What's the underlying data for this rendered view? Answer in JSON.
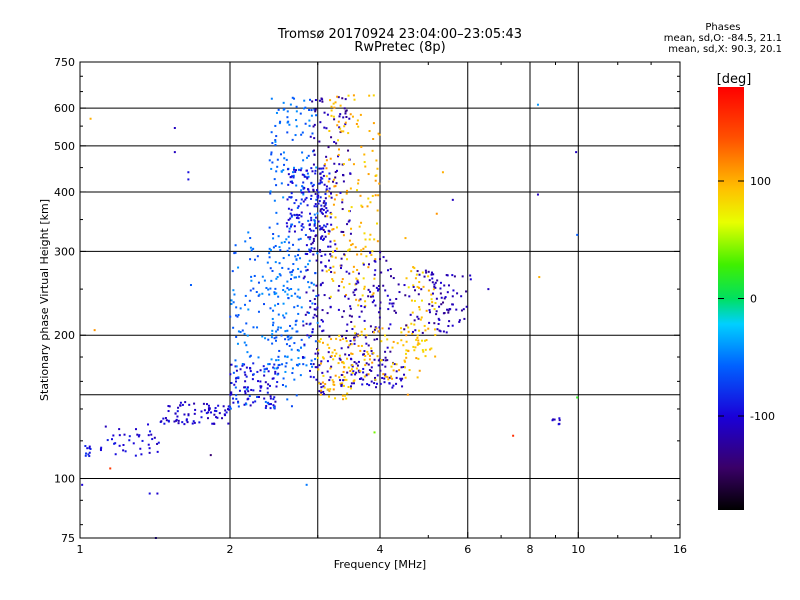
{
  "title": "Tromsø 20170924 23:04:00–23:05:43",
  "subtitle": "RwPretec (8p)",
  "phase_box": {
    "header": "Phases",
    "line1": "mean, sd,O: -84.5, 21.1",
    "line2": "mean, sd,X:  90.3, 20.1"
  },
  "colorbar": {
    "unit_label": "[deg]",
    "min": -180,
    "max": 180,
    "ticks": [
      {
        "value": 100,
        "label": "100"
      },
      {
        "value": 0,
        "label": "0"
      },
      {
        "value": -100,
        "label": "-100"
      }
    ]
  },
  "chart_data": {
    "type": "scatter",
    "title": "Tromsø 20170924 23:04:00–23:05:43",
    "subtitle": "RwPretec (8p)",
    "xlabel": "Frequency [MHz]",
    "ylabel": "Stationary phase Virtual Height [km]",
    "x_scale": "log",
    "y_scale": "log",
    "xlim": [
      1,
      16
    ],
    "ylim": [
      75,
      750
    ],
    "x_ticks": [
      1,
      2,
      4,
      6,
      8,
      10,
      16
    ],
    "x_tick_labels": [
      "1",
      "2",
      "4",
      "6",
      "8",
      "10",
      "16"
    ],
    "y_ticks": [
      75,
      100,
      200,
      300,
      400,
      500,
      600,
      750
    ],
    "y_tick_labels": [
      "75",
      "100",
      "200",
      "300",
      "400",
      "500",
      "600",
      "750"
    ],
    "x_grid": [
      2,
      3,
      4,
      6,
      8,
      10
    ],
    "y_grid": [
      100,
      150,
      200,
      300,
      400,
      500,
      600
    ],
    "grid": true,
    "color_encoding": "phase [deg]",
    "clusters": [
      {
        "x": [
          1.02,
          1.05
        ],
        "y": [
          110,
          118
        ],
        "phase": -90,
        "count": 10
      },
      {
        "x": [
          1.1,
          1.45
        ],
        "y": [
          110,
          130
        ],
        "phase": -100,
        "count": 40
      },
      {
        "x": [
          1.45,
          2.0
        ],
        "y": [
          130,
          145
        ],
        "phase": -105,
        "count": 80
      },
      {
        "x": [
          2.0,
          2.5
        ],
        "y": [
          140,
          175
        ],
        "phase": -100,
        "count": 90
      },
      {
        "x": [
          2.0,
          2.8
        ],
        "y": [
          140,
          330
        ],
        "phase": -55,
        "count": 170
      },
      {
        "x": [
          2.4,
          3.0
        ],
        "y": [
          170,
          640
        ],
        "phase": -55,
        "count": 230
      },
      {
        "x": [
          2.6,
          3.2
        ],
        "y": [
          330,
          450
        ],
        "phase": -95,
        "count": 140
      },
      {
        "x": [
          2.9,
          3.5
        ],
        "y": [
          300,
          640
        ],
        "phase": -120,
        "count": 90
      },
      {
        "x": [
          2.8,
          3.2
        ],
        "y": [
          150,
          330
        ],
        "phase": -110,
        "count": 110
      },
      {
        "x": [
          3.0,
          3.5
        ],
        "y": [
          145,
          200
        ],
        "phase": 95,
        "count": 70
      },
      {
        "x": [
          3.1,
          4.0
        ],
        "y": [
          230,
          640
        ],
        "phase": 95,
        "count": 160
      },
      {
        "x": [
          3.3,
          4.5
        ],
        "y": [
          155,
          175
        ],
        "phase": -110,
        "count": 70
      },
      {
        "x": [
          3.3,
          4.2
        ],
        "y": [
          175,
          300
        ],
        "phase": -115,
        "count": 120
      },
      {
        "x": [
          3.5,
          5.0
        ],
        "y": [
          160,
          210
        ],
        "phase": 95,
        "count": 90
      },
      {
        "x": [
          4.5,
          5.2
        ],
        "y": [
          180,
          280
        ],
        "phase": 90,
        "count": 50
      },
      {
        "x": [
          4.2,
          5.6
        ],
        "y": [
          200,
          280
        ],
        "phase": -120,
        "count": 60
      },
      {
        "x": [
          5.0,
          6.1
        ],
        "y": [
          210,
          270
        ],
        "phase": -115,
        "count": 45
      },
      {
        "x": [
          8.8,
          9.2
        ],
        "y": [
          130,
          135
        ],
        "phase": -110,
        "count": 8
      }
    ],
    "points": [
      {
        "x": 1.05,
        "y": 570,
        "phase": 100
      },
      {
        "x": 1.07,
        "y": 205,
        "phase": 110
      },
      {
        "x": 1.15,
        "y": 105,
        "phase": 150
      },
      {
        "x": 1.38,
        "y": 93,
        "phase": -95
      },
      {
        "x": 1.43,
        "y": 93,
        "phase": -105
      },
      {
        "x": 1.42,
        "y": 75,
        "phase": -110
      },
      {
        "x": 1.55,
        "y": 545,
        "phase": -110
      },
      {
        "x": 1.55,
        "y": 485,
        "phase": -110
      },
      {
        "x": 1.65,
        "y": 440,
        "phase": -95
      },
      {
        "x": 1.65,
        "y": 425,
        "phase": -95
      },
      {
        "x": 1.67,
        "y": 255,
        "phase": -60
      },
      {
        "x": 1.83,
        "y": 112,
        "phase": -140
      },
      {
        "x": 1.01,
        "y": 97,
        "phase": -100
      },
      {
        "x": 2.85,
        "y": 97,
        "phase": -50
      },
      {
        "x": 5.35,
        "y": 440,
        "phase": 100
      },
      {
        "x": 5.6,
        "y": 385,
        "phase": -110
      },
      {
        "x": 5.2,
        "y": 360,
        "phase": 110
      },
      {
        "x": 6.6,
        "y": 250,
        "phase": -110
      },
      {
        "x": 7.4,
        "y": 123,
        "phase": 155
      },
      {
        "x": 8.3,
        "y": 610,
        "phase": -40
      },
      {
        "x": 8.3,
        "y": 395,
        "phase": -110
      },
      {
        "x": 8.35,
        "y": 265,
        "phase": 100
      },
      {
        "x": 9.9,
        "y": 485,
        "phase": -110
      },
      {
        "x": 9.95,
        "y": 325,
        "phase": -60
      },
      {
        "x": 9.95,
        "y": 148,
        "phase": 20
      },
      {
        "x": 4.5,
        "y": 320,
        "phase": 100
      },
      {
        "x": 4.55,
        "y": 150,
        "phase": 110
      },
      {
        "x": 3.9,
        "y": 125,
        "phase": 40
      }
    ]
  }
}
